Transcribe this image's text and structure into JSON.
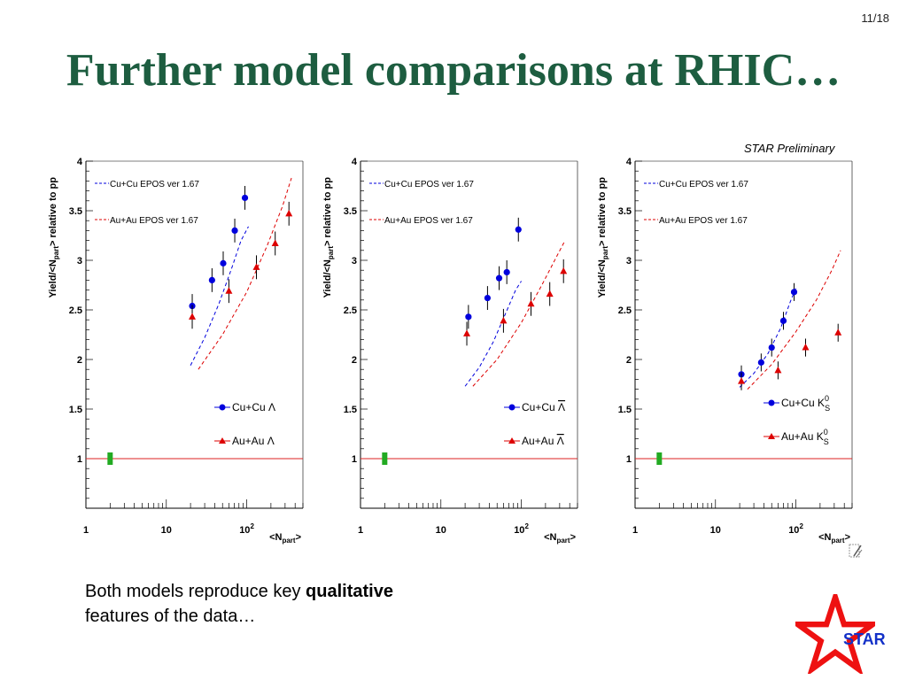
{
  "page_number": "11/18",
  "title": "Further model comparisons at RHIC…",
  "preliminary_label": "STAR Preliminary",
  "caption": {
    "text_before": "Both models reproduce key ",
    "bold": "qualitative",
    "text_after": "features of the data…"
  },
  "logo_text": "STAR",
  "colors": {
    "title": "#1d5d40",
    "cucu": "#0000dd",
    "auau": "#dd0000",
    "unity_line": "#dd2222",
    "syst_box": "#22aa22",
    "star": "#ee1111",
    "logo_text": "#1230c8"
  },
  "chart_data": [
    {
      "type": "scatter",
      "ylabel": "Yield/<N_part> relative to pp",
      "xlabel": "<N_part>",
      "x_scale": "log",
      "xlim": [
        1,
        500
      ],
      "ylim": [
        0.5,
        4
      ],
      "x_tick_labels": [
        "1",
        "10",
        "10^2"
      ],
      "y_tick_labels": [
        "1",
        "1.5",
        "2",
        "2.5",
        "3",
        "3.5",
        "4"
      ],
      "legend": {
        "model_entries": [
          "Cu+Cu EPOS ver 1.67",
          "Au+Au EPOS ver 1.67"
        ],
        "data_entries": [
          {
            "system": "Cu+Cu",
            "particle": "Λ"
          },
          {
            "system": "Au+Au",
            "particle": "Λ"
          }
        ]
      },
      "series": [
        {
          "name": "Cu+Cu Λ",
          "kind": "data",
          "color": "#0000dd",
          "marker": "circle",
          "x": [
            21,
            37,
            51,
            71,
            95
          ],
          "y": [
            2.54,
            2.8,
            2.97,
            3.3,
            3.63
          ],
          "err": [
            0.12,
            0.12,
            0.12,
            0.12,
            0.12
          ]
        },
        {
          "name": "Au+Au Λ",
          "kind": "data",
          "color": "#dd0000",
          "marker": "triangle",
          "x": [
            21,
            60,
            132,
            226,
            335
          ],
          "y": [
            2.43,
            2.69,
            2.93,
            3.17,
            3.47
          ],
          "err": [
            0.12,
            0.12,
            0.12,
            0.12,
            0.12
          ]
        },
        {
          "name": "Cu+Cu EPOS ver 1.67",
          "kind": "model",
          "color": "#0000dd",
          "x": [
            20,
            30,
            45,
            65,
            85,
            105
          ],
          "y": [
            1.94,
            2.22,
            2.56,
            2.92,
            3.2,
            3.34
          ]
        },
        {
          "name": "Au+Au EPOS ver 1.67",
          "kind": "model",
          "color": "#dd0000",
          "x": [
            25,
            50,
            100,
            180,
            280,
            360
          ],
          "y": [
            1.9,
            2.25,
            2.68,
            3.15,
            3.55,
            3.83
          ]
        }
      ],
      "unity_line": 1,
      "syst_box": {
        "x": 2,
        "y": 1
      }
    },
    {
      "type": "scatter",
      "ylabel": "Yield/<N_part> relative to pp",
      "xlabel": "<N_part>",
      "x_scale": "log",
      "xlim": [
        1,
        500
      ],
      "ylim": [
        0.5,
        4
      ],
      "x_tick_labels": [
        "1",
        "10",
        "10^2"
      ],
      "y_tick_labels": [
        "1",
        "1.5",
        "2",
        "2.5",
        "3",
        "3.5",
        "4"
      ],
      "legend": {
        "model_entries": [
          "Cu+Cu EPOS ver 1.67",
          "Au+Au EPOS ver 1.67"
        ],
        "data_entries": [
          {
            "system": "Cu+Cu",
            "particle": "Λ",
            "overline": true
          },
          {
            "system": "Au+Au",
            "particle": "Λ",
            "overline": true
          }
        ]
      },
      "series": [
        {
          "name": "Cu+Cu anti-Λ",
          "kind": "data",
          "color": "#0000dd",
          "marker": "circle",
          "x": [
            22,
            38,
            53,
            66,
            92
          ],
          "y": [
            2.43,
            2.62,
            2.82,
            2.88,
            3.31
          ],
          "err": [
            0.12,
            0.12,
            0.12,
            0.12,
            0.12
          ]
        },
        {
          "name": "Au+Au anti-Λ",
          "kind": "data",
          "color": "#dd0000",
          "marker": "triangle",
          "x": [
            21,
            60,
            132,
            226,
            335
          ],
          "y": [
            2.26,
            2.39,
            2.56,
            2.66,
            2.89
          ],
          "err": [
            0.12,
            0.12,
            0.12,
            0.12,
            0.12
          ]
        },
        {
          "name": "Cu+Cu EPOS ver 1.67",
          "kind": "model",
          "color": "#0000dd",
          "x": [
            20,
            30,
            45,
            65,
            85,
            100
          ],
          "y": [
            1.73,
            1.92,
            2.18,
            2.48,
            2.7,
            2.79
          ]
        },
        {
          "name": "Au+Au EPOS ver 1.67",
          "kind": "model",
          "color": "#dd0000",
          "x": [
            25,
            50,
            100,
            180,
            280,
            350
          ],
          "y": [
            1.73,
            2.0,
            2.37,
            2.75,
            3.05,
            3.2
          ]
        }
      ],
      "unity_line": 1,
      "syst_box": {
        "x": 2,
        "y": 1
      }
    },
    {
      "type": "scatter",
      "ylabel": "Yield/<N_part> relative to pp",
      "xlabel": "<N_part>",
      "x_scale": "log",
      "xlim": [
        1,
        500
      ],
      "ylim": [
        0.5,
        4
      ],
      "x_tick_labels": [
        "1",
        "10",
        "10^2"
      ],
      "y_tick_labels": [
        "1",
        "1.5",
        "2",
        "2.5",
        "3",
        "3.5",
        "4"
      ],
      "legend": {
        "model_entries": [
          "Cu+Cu EPOS ver 1.67",
          "Au+Au EPOS ver 1.67"
        ],
        "data_entries": [
          {
            "system": "Cu+Cu",
            "particle": "K",
            "sup": "0",
            "sub": "S"
          },
          {
            "system": "Au+Au",
            "particle": "K",
            "sup": "0",
            "sub": "S"
          }
        ]
      },
      "series": [
        {
          "name": "Cu+Cu K0S",
          "kind": "data",
          "color": "#0000dd",
          "marker": "circle",
          "x": [
            21,
            37,
            50,
            70,
            95
          ],
          "y": [
            1.85,
            1.97,
            2.12,
            2.39,
            2.68
          ],
          "err": [
            0.09,
            0.09,
            0.09,
            0.09,
            0.09
          ]
        },
        {
          "name": "Au+Au K0S",
          "kind": "data",
          "color": "#dd0000",
          "marker": "triangle",
          "x": [
            21,
            60,
            132,
            335
          ],
          "y": [
            1.78,
            1.89,
            2.12,
            2.27
          ],
          "err": [
            0.09,
            0.09,
            0.09,
            0.09
          ]
        },
        {
          "name": "Cu+Cu EPOS ver 1.67",
          "kind": "model",
          "color": "#0000dd",
          "x": [
            20,
            30,
            45,
            65,
            85,
            100
          ],
          "y": [
            1.72,
            1.86,
            2.06,
            2.32,
            2.58,
            2.72
          ]
        },
        {
          "name": "Au+Au EPOS ver 1.67",
          "kind": "model",
          "color": "#dd0000",
          "x": [
            25,
            50,
            100,
            180,
            280,
            360
          ],
          "y": [
            1.7,
            1.95,
            2.28,
            2.6,
            2.9,
            3.1
          ]
        }
      ],
      "unity_line": 1,
      "syst_box": {
        "x": 2,
        "y": 1
      }
    }
  ]
}
